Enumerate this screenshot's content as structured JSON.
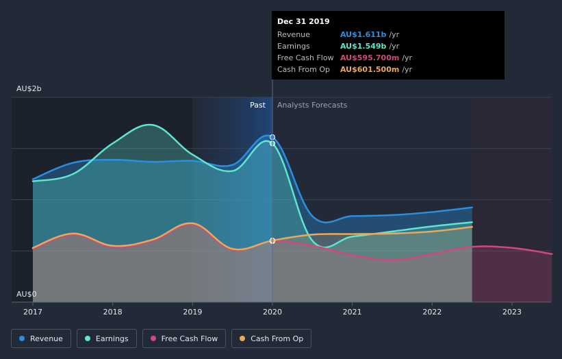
{
  "chart_data": {
    "type": "area",
    "currency": "AU$",
    "y_axis": {
      "labels": [
        "AU$2b",
        "AU$0"
      ],
      "ylim": [
        0,
        2.0
      ],
      "unit": "b"
    },
    "x_axis": {
      "ticks": [
        "2017",
        "2018",
        "2019",
        "2020",
        "2021",
        "2022",
        "2023"
      ],
      "xlim": [
        2017,
        2023.5
      ]
    },
    "sections": {
      "past_label": "Past",
      "forecast_label": "Analysts Forecasts",
      "divider_x": 2020
    },
    "series": [
      {
        "name": "Revenue",
        "color": "#2a8fe0",
        "x": [
          2017.0,
          2017.5,
          2018.0,
          2018.5,
          2019.0,
          2019.5,
          2020.0,
          2020.5,
          2021.0,
          2021.5,
          2022.0,
          2022.5
        ],
        "values": [
          1.2,
          1.36,
          1.39,
          1.37,
          1.38,
          1.34,
          1.611,
          0.84,
          0.84,
          0.85,
          0.88,
          0.925
        ]
      },
      {
        "name": "Earnings",
        "color": "#5ee6cf",
        "x": [
          2017.0,
          2017.5,
          2018.0,
          2018.5,
          2019.0,
          2019.5,
          2020.0,
          2020.5,
          2021.0,
          2021.5,
          2022.0,
          2022.5
        ],
        "values": [
          1.18,
          1.25,
          1.55,
          1.73,
          1.44,
          1.28,
          1.549,
          0.6,
          0.64,
          0.69,
          0.74,
          0.78
        ]
      },
      {
        "name": "Free Cash Flow",
        "color": "#d0487f",
        "x": [
          2017.0,
          2017.5,
          2018.0,
          2018.5,
          2019.0,
          2019.5,
          2020.0,
          2020.5,
          2021.0,
          2021.5,
          2022.0,
          2022.5,
          2023.0,
          2023.5
        ],
        "values": [
          0.52,
          0.66,
          0.54,
          0.6,
          0.76,
          0.51,
          0.5957,
          0.55,
          0.46,
          0.41,
          0.47,
          0.54,
          0.53,
          0.47
        ]
      },
      {
        "name": "Cash From Op",
        "color": "#e9a95a",
        "x": [
          2017.0,
          2017.5,
          2018.0,
          2018.5,
          2019.0,
          2019.5,
          2020.0,
          2020.5,
          2021.0,
          2021.5,
          2022.0,
          2022.5
        ],
        "values": [
          0.53,
          0.67,
          0.55,
          0.61,
          0.77,
          0.52,
          0.6015,
          0.66,
          0.665,
          0.67,
          0.69,
          0.735
        ]
      }
    ],
    "tooltip": {
      "date": "Dec 31 2019",
      "rows": [
        {
          "label": "Revenue",
          "value": "AU$1.611b",
          "unit": "/yr",
          "color": "#2a8fe0"
        },
        {
          "label": "Earnings",
          "value": "AU$1.549b",
          "unit": "/yr",
          "color": "#5ee6cf"
        },
        {
          "label": "Free Cash Flow",
          "value": "AU$595.700m",
          "unit": "/yr",
          "color": "#d0487f"
        },
        {
          "label": "Cash From Op",
          "value": "AU$601.500m",
          "unit": "/yr",
          "color": "#e9a95a"
        }
      ]
    },
    "legend": [
      {
        "label": "Revenue",
        "color": "#2a8fe0"
      },
      {
        "label": "Earnings",
        "color": "#5ee6cf"
      },
      {
        "label": "Free Cash Flow",
        "color": "#d0487f"
      },
      {
        "label": "Cash From Op",
        "color": "#e9a95a"
      }
    ]
  }
}
